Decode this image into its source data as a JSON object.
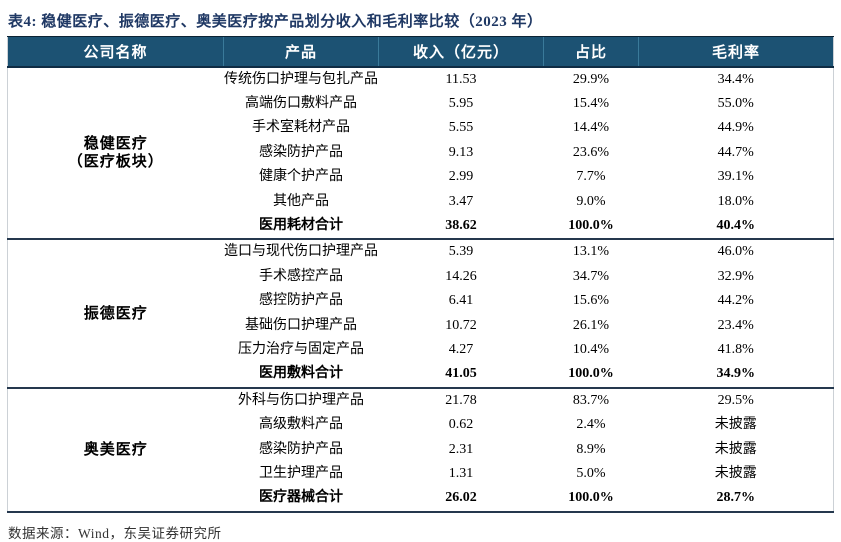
{
  "title": "表4:  稳健医疗、振德医疗、奥美医疗按产品划分收入和毛利率比较（2023 年）",
  "colors": {
    "header_bg": "#1C5273",
    "header_divider": "#3A7A9A",
    "title_color": "#1F3864",
    "section_border": "#25384e"
  },
  "table": {
    "columns": [
      "公司名称",
      "产品",
      "收入（亿元）",
      "占比",
      "毛利率"
    ],
    "sections": [
      {
        "company": "稳健医疗",
        "company_sub": "（医疗板块）",
        "rows": [
          {
            "product": "传统伤口护理与包扎产品",
            "revenue": "11.53",
            "share": "29.9%",
            "margin": "34.4%",
            "is_total": false
          },
          {
            "product": "高端伤口敷料产品",
            "revenue": "5.95",
            "share": "15.4%",
            "margin": "55.0%",
            "is_total": false
          },
          {
            "product": "手术室耗材产品",
            "revenue": "5.55",
            "share": "14.4%",
            "margin": "44.9%",
            "is_total": false
          },
          {
            "product": "感染防护产品",
            "revenue": "9.13",
            "share": "23.6%",
            "margin": "44.7%",
            "is_total": false
          },
          {
            "product": "健康个护产品",
            "revenue": "2.99",
            "share": "7.7%",
            "margin": "39.1%",
            "is_total": false
          },
          {
            "product": "其他产品",
            "revenue": "3.47",
            "share": "9.0%",
            "margin": "18.0%",
            "is_total": false
          },
          {
            "product": "医用耗材合计",
            "revenue": "38.62",
            "share": "100.0%",
            "margin": "40.4%",
            "is_total": true
          }
        ]
      },
      {
        "company": "振德医疗",
        "company_sub": "",
        "rows": [
          {
            "product": "造口与现代伤口护理产品",
            "revenue": "5.39",
            "share": "13.1%",
            "margin": "46.0%",
            "is_total": false
          },
          {
            "product": "手术感控产品",
            "revenue": "14.26",
            "share": "34.7%",
            "margin": "32.9%",
            "is_total": false
          },
          {
            "product": "感控防护产品",
            "revenue": "6.41",
            "share": "15.6%",
            "margin": "44.2%",
            "is_total": false
          },
          {
            "product": "基础伤口护理产品",
            "revenue": "10.72",
            "share": "26.1%",
            "margin": "23.4%",
            "is_total": false
          },
          {
            "product": "压力治疗与固定产品",
            "revenue": "4.27",
            "share": "10.4%",
            "margin": "41.8%",
            "is_total": false
          },
          {
            "product": "医用敷料合计",
            "revenue": "41.05",
            "share": "100.0%",
            "margin": "34.9%",
            "is_total": true
          }
        ]
      },
      {
        "company": "奥美医疗",
        "company_sub": "",
        "rows": [
          {
            "product": "外科与伤口护理产品",
            "revenue": "21.78",
            "share": "83.7%",
            "margin": "29.5%",
            "is_total": false
          },
          {
            "product": "高级敷料产品",
            "revenue": "0.62",
            "share": "2.4%",
            "margin": "未披露",
            "is_total": false
          },
          {
            "product": "感染防护产品",
            "revenue": "2.31",
            "share": "8.9%",
            "margin": "未披露",
            "is_total": false
          },
          {
            "product": "卫生护理产品",
            "revenue": "1.31",
            "share": "5.0%",
            "margin": "未披露",
            "is_total": false
          },
          {
            "product": "医疗器械合计",
            "revenue": "26.02",
            "share": "100.0%",
            "margin": "28.7%",
            "is_total": true
          }
        ]
      }
    ]
  },
  "footer": {
    "source": "数据来源：Wind，东吴证券研究所"
  }
}
